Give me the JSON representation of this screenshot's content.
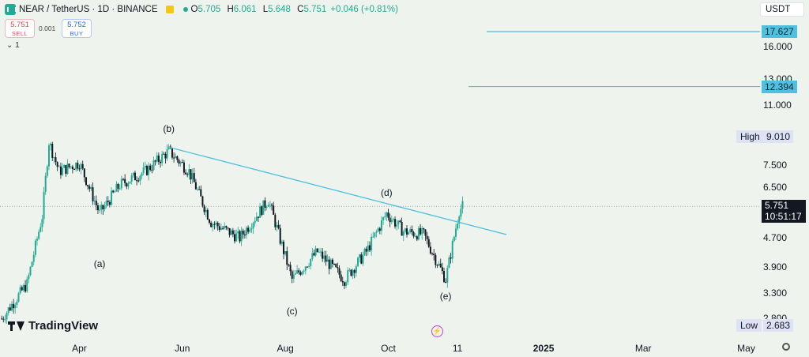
{
  "header": {
    "symbol_title": "NEAR / TetherUS · 1D · BINANCE",
    "ohlc": [
      {
        "key": "O",
        "value": "5.705"
      },
      {
        "key": "H",
        "value": "6.061"
      },
      {
        "key": "L",
        "value": "5.648"
      },
      {
        "key": "C",
        "value": "5.751"
      }
    ],
    "change": "+0.046 (+0.81%)",
    "sell_price": "5.751",
    "sell_label": "SELL",
    "buy_price": "5.752",
    "buy_label": "BUY",
    "spread": "0.001",
    "indicators_collapse": "1"
  },
  "currency": "USDT",
  "price_axis": {
    "ticks": [
      "16.000",
      "13.000",
      "11.000",
      "7.500",
      "6.500",
      "4.700",
      "3.900",
      "3.300",
      "2.800"
    ],
    "high_label": "High",
    "high_value": "9.010",
    "low_label": "Low",
    "low_value": "2.683",
    "level_tags": [
      "17.627",
      "12.394"
    ],
    "last_price": "5.751",
    "countdown": "10:51:17"
  },
  "time_axis": {
    "ticks": [
      "Apr",
      "Jun",
      "Aug",
      "Oct",
      "11",
      "2025",
      "Mar",
      "May"
    ]
  },
  "branding": {
    "logo_text": "TradingView"
  },
  "colors": {
    "up": "#22ab94",
    "down": "#131722",
    "trendline": "#4fc0de",
    "level_line": "#4fc0de",
    "background": "#eef3ee"
  },
  "chart_data": {
    "type": "candlestick",
    "title": "NEAR / TetherUS · 1D · BINANCE",
    "y_scale": "log",
    "ylim": [
      2.6,
      19
    ],
    "series": [
      {
        "date": "2024-02-15",
        "close": 2.8
      },
      {
        "date": "2024-03-01",
        "close": 3.5
      },
      {
        "date": "2024-03-10",
        "close": 5.4
      },
      {
        "date": "2024-03-14",
        "close": 8.7
      },
      {
        "date": "2024-03-20",
        "close": 7.2
      },
      {
        "date": "2024-04-01",
        "close": 7.6
      },
      {
        "date": "2024-04-13",
        "close": 5.5
      },
      {
        "date": "2024-04-25",
        "close": 6.6
      },
      {
        "date": "2024-05-10",
        "close": 7.2
      },
      {
        "date": "2024-05-24",
        "close": 8.2
      },
      {
        "date": "2024-06-05",
        "close": 7.2
      },
      {
        "date": "2024-06-18",
        "close": 5.2
      },
      {
        "date": "2024-07-05",
        "close": 4.7
      },
      {
        "date": "2024-07-22",
        "close": 6.0
      },
      {
        "date": "2024-08-05",
        "close": 3.6
      },
      {
        "date": "2024-08-20",
        "close": 4.3
      },
      {
        "date": "2024-09-05",
        "close": 3.6
      },
      {
        "date": "2024-09-18",
        "close": 4.3
      },
      {
        "date": "2024-09-30",
        "close": 5.5
      },
      {
        "date": "2024-10-10",
        "close": 4.9
      },
      {
        "date": "2024-10-22",
        "close": 4.8
      },
      {
        "date": "2024-11-04",
        "close": 3.6
      },
      {
        "date": "2024-11-12",
        "close": 5.6
      },
      {
        "date": "2024-11-14",
        "close": 5.751
      }
    ],
    "annotations": {
      "wave_labels": [
        {
          "label": "(a)",
          "date": "2024-04-13"
        },
        {
          "label": "(b)",
          "date": "2024-05-24"
        },
        {
          "label": "(c)",
          "date": "2024-08-05"
        },
        {
          "label": "(d)",
          "date": "2024-09-30"
        },
        {
          "label": "(e)",
          "date": "2024-11-04"
        }
      ],
      "trendline": [
        {
          "date": "2024-05-24",
          "price": 8.4
        },
        {
          "date": "2024-12-10",
          "price": 4.8
        }
      ],
      "horizontal_levels": [
        17.627,
        12.394
      ]
    },
    "grid": false
  }
}
